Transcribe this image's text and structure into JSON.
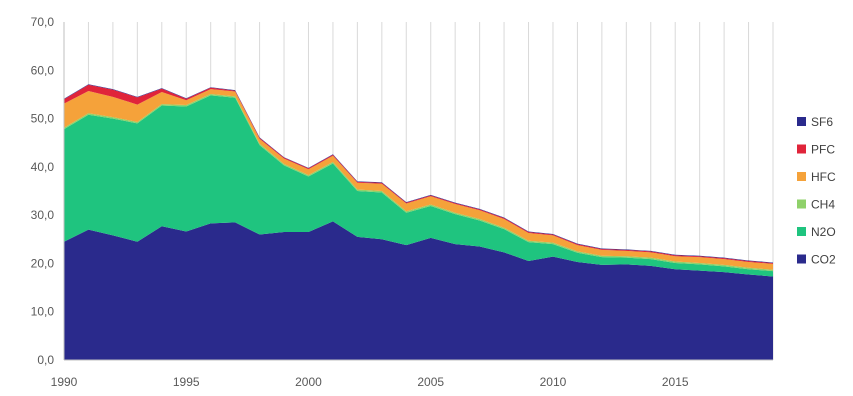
{
  "chart_data": {
    "type": "area",
    "stacked": true,
    "x": [
      1990,
      1991,
      1992,
      1993,
      1994,
      1995,
      1996,
      1997,
      1998,
      1999,
      2000,
      2001,
      2002,
      2003,
      2004,
      2005,
      2006,
      2007,
      2008,
      2009,
      2010,
      2011,
      2012,
      2013,
      2014,
      2015,
      2016,
      2017,
      2018,
      2019
    ],
    "xticks": [
      1990,
      1995,
      2000,
      2005,
      2010,
      2015
    ],
    "yticks": [
      "0,0",
      "10,0",
      "20,0",
      "30,0",
      "40,0",
      "50,0",
      "60,0",
      "70,0"
    ],
    "ylim": [
      0,
      70
    ],
    "xlim": [
      1990,
      2019
    ],
    "grid": "vertical",
    "legend_position": "right",
    "series": [
      {
        "name": "CO2",
        "color": "#2a2a8c",
        "values": [
          24.5,
          27.0,
          25.8,
          24.5,
          27.7,
          26.6,
          28.3,
          28.5,
          26.0,
          26.5,
          26.5,
          28.7,
          25.5,
          25.0,
          23.8,
          25.3,
          24.0,
          23.5,
          22.3,
          20.5,
          21.4,
          20.3,
          19.7,
          19.8,
          19.5,
          18.8,
          18.5,
          18.2,
          17.7,
          17.3
        ]
      },
      {
        "name": "N2O",
        "color": "#1fc47f",
        "values": [
          23.3,
          23.8,
          24.2,
          24.5,
          25.0,
          25.9,
          26.5,
          25.8,
          18.5,
          13.8,
          11.5,
          12.0,
          9.5,
          9.7,
          6.7,
          6.6,
          6.2,
          5.4,
          4.8,
          3.9,
          2.6,
          1.9,
          1.6,
          1.4,
          1.4,
          1.3,
          1.3,
          1.2,
          1.1,
          1.1
        ]
      },
      {
        "name": "CH4",
        "color": "#8fd16a",
        "values": [
          0.3,
          0.3,
          0.3,
          0.3,
          0.3,
          0.3,
          0.3,
          0.3,
          0.3,
          0.3,
          0.3,
          0.3,
          0.3,
          0.3,
          0.3,
          0.3,
          0.3,
          0.3,
          0.3,
          0.3,
          0.3,
          0.3,
          0.3,
          0.3,
          0.3,
          0.3,
          0.3,
          0.3,
          0.3,
          0.3
        ]
      },
      {
        "name": "HFC",
        "color": "#f5a23a",
        "values": [
          5.0,
          4.6,
          4.2,
          3.6,
          2.5,
          1.0,
          1.0,
          1.0,
          1.0,
          1.1,
          1.2,
          1.3,
          1.4,
          1.5,
          1.6,
          1.7,
          1.8,
          1.8,
          1.8,
          1.6,
          1.5,
          1.3,
          1.2,
          1.1,
          1.1,
          1.1,
          1.2,
          1.2,
          1.2,
          1.2
        ]
      },
      {
        "name": "PFC",
        "color": "#e0243a",
        "values": [
          0.9,
          1.3,
          1.5,
          1.5,
          0.7,
          0.3,
          0.3,
          0.2,
          0.2,
          0.2,
          0.2,
          0.2,
          0.2,
          0.2,
          0.2,
          0.2,
          0.2,
          0.2,
          0.2,
          0.2,
          0.2,
          0.2,
          0.2,
          0.2,
          0.2,
          0.2,
          0.2,
          0.2,
          0.2,
          0.2
        ]
      },
      {
        "name": "SF6",
        "color": "#2a2a8c",
        "values": [
          0.1,
          0.1,
          0.1,
          0.1,
          0.1,
          0.1,
          0.1,
          0.1,
          0.1,
          0.1,
          0.1,
          0.1,
          0.1,
          0.1,
          0.1,
          0.1,
          0.1,
          0.1,
          0.1,
          0.1,
          0.1,
          0.1,
          0.1,
          0.1,
          0.1,
          0.1,
          0.1,
          0.1,
          0.1,
          0.1
        ]
      }
    ],
    "legend_order": [
      "SF6",
      "PFC",
      "HFC",
      "CH4",
      "N2O",
      "CO2"
    ]
  }
}
